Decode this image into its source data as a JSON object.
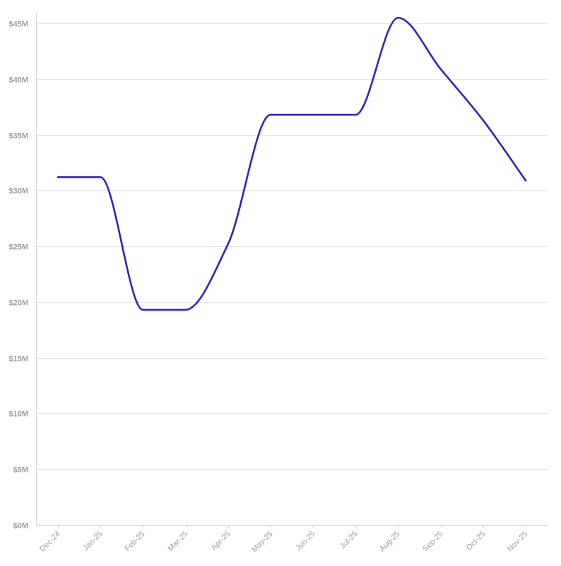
{
  "chart_data": {
    "type": "line",
    "title": "",
    "xlabel": "",
    "ylabel": "",
    "categories": [
      "Dec-24",
      "Jan-25",
      "Feb-25",
      "Mar-25",
      "Apr-25",
      "May-25",
      "Jun-25",
      "Jul-25",
      "Aug-25",
      "Sep-25",
      "Oct-25",
      "Nov-25"
    ],
    "series": [
      {
        "values": [
          31.2,
          31.2,
          19.3,
          19.3,
          25.2,
          36.8,
          36.8,
          36.8,
          45.5,
          40.9,
          36.3,
          30.9
        ],
        "color": "#2b24d1"
      }
    ],
    "y_unit": "$M",
    "ylim": [
      0,
      46
    ],
    "yticks": [
      0,
      5,
      10,
      15,
      20,
      25,
      30,
      35,
      40,
      45
    ],
    "ytick_labels": [
      "$0M",
      "$5M",
      "$10M",
      "$15M",
      "$20M",
      "$25M",
      "$30M",
      "$35M",
      "$40M",
      "$45M"
    ],
    "grid": true,
    "legend": "none",
    "line_style": "smooth monotone curve"
  }
}
